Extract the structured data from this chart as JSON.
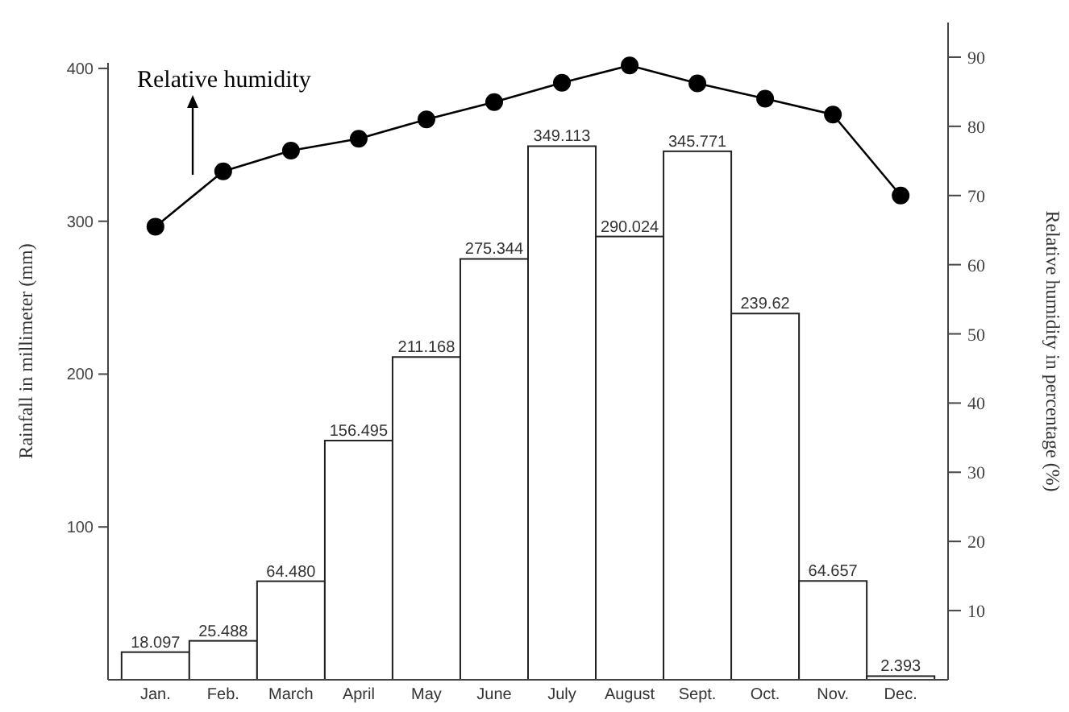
{
  "chart_data": {
    "type": "bar",
    "categories": [
      "Jan.",
      "Feb.",
      "March",
      "April",
      "May",
      "June",
      "July",
      "August",
      "Sept.",
      "Oct.",
      "Nov.",
      "Dec."
    ],
    "ylabel": "Rainfall in millimeter (mm)",
    "y2label": "Relative humidity in percentage (%)",
    "series": [
      {
        "color": "#ffffff",
        "values": [
          18.097,
          25.488,
          64.48,
          156.495,
          211.168,
          275.344,
          349.113,
          290.024,
          345.771,
          239.62,
          64.657,
          2.393
        ],
        "value_labels": [
          "18.097",
          "25.488",
          "64.480",
          "156.495",
          "211.168",
          "275.344",
          "349.113",
          "290.024",
          "345.771",
          "239.62",
          "64.657",
          "2.393"
        ]
      },
      {
        "type": "line",
        "axis": "y2",
        "color": "#000000",
        "marker": "circle",
        "line_style": "solid",
        "values": [
          65.5,
          73.5,
          76.5,
          78.2,
          81,
          83.5,
          86.3,
          88.8,
          86.2,
          84,
          81.7,
          70
        ]
      }
    ],
    "ylim": [
      0,
      430
    ],
    "yticks": [
      100,
      200,
      300,
      400
    ],
    "y2lim": [
      0,
      95
    ],
    "y2ticks": [
      10,
      20,
      30,
      40,
      50,
      60,
      70,
      80,
      90
    ],
    "annotations": [
      "Relative humidity"
    ]
  }
}
